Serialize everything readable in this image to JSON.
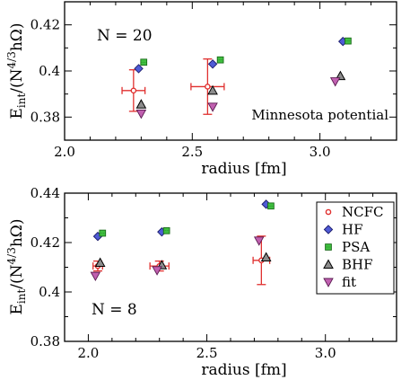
{
  "chart_data": [
    {
      "type": "scatter",
      "panel_label": "N = 20",
      "annotation": "Minnesota potential",
      "xlabel": "radius [fm]",
      "ylabel_main": "E",
      "ylabel_sub": "int",
      "ylabel_mid": "/(N",
      "ylabel_sup": "4/3",
      "ylabel_tail": "hΩ)",
      "xlim": [
        2.0,
        3.3
      ],
      "ylim": [
        0.37,
        0.43
      ],
      "xticks": [
        2.0,
        2.5,
        3.0
      ],
      "xtick_labels": [
        "2.0",
        "2.5",
        "3.0"
      ],
      "yticks": [
        0.38,
        0.4,
        0.42
      ],
      "ytick_labels": [
        "0.38",
        "0.4",
        "0.42"
      ],
      "series": [
        {
          "name": "NCFC",
          "marker": "circle",
          "color": "#e0302f",
          "points": [
            {
              "x": 2.27,
              "y": 0.3915,
              "yerr": 0.009,
              "xerr": 0.045
            },
            {
              "x": 2.56,
              "y": 0.3932,
              "yerr": 0.012,
              "xerr": 0.065
            }
          ]
        },
        {
          "name": "HF",
          "marker": "diamond",
          "color": "#4f5bd5",
          "points": [
            {
              "x": 2.29,
              "y": 0.401
            },
            {
              "x": 2.58,
              "y": 0.403
            },
            {
              "x": 3.09,
              "y": 0.4128
            }
          ]
        },
        {
          "name": "PSA",
          "marker": "square",
          "color": "#3fbf3f",
          "points": [
            {
              "x": 2.31,
              "y": 0.4038
            },
            {
              "x": 2.61,
              "y": 0.4048
            },
            {
              "x": 3.11,
              "y": 0.413
            }
          ]
        },
        {
          "name": "BHF",
          "marker": "triangle-up",
          "color": "#555555",
          "points": [
            {
              "x": 2.3,
              "y": 0.3855
            },
            {
              "x": 2.58,
              "y": 0.3915
            },
            {
              "x": 3.08,
              "y": 0.3978
            }
          ]
        },
        {
          "name": "fit",
          "marker": "triangle-down",
          "color": "#c060b0",
          "points": [
            {
              "x": 2.3,
              "y": 0.3815
            },
            {
              "x": 2.58,
              "y": 0.3845
            },
            {
              "x": 3.06,
              "y": 0.3955
            }
          ]
        }
      ],
      "legend": "none"
    },
    {
      "type": "scatter",
      "panel_label": "N = 8",
      "xlabel": "radius [fm]",
      "ylabel_main": "E",
      "ylabel_sub": "int",
      "ylabel_mid": "/(N",
      "ylabel_sup": "4/3",
      "ylabel_tail": "hΩ)",
      "xlim": [
        1.9,
        3.3
      ],
      "ylim": [
        0.38,
        0.44
      ],
      "xticks": [
        2.0,
        2.5,
        3.0
      ],
      "xtick_labels": [
        "2.0",
        "2.5",
        "3.0"
      ],
      "yticks": [
        0.38,
        0.4,
        0.42,
        0.44
      ],
      "ytick_labels": [
        "0.38",
        "0.4",
        "0.42",
        "0.44"
      ],
      "legend_position": "top-right",
      "legend_entries": [
        "NCFC",
        "HF",
        "PSA",
        "BHF",
        "fit"
      ],
      "series": [
        {
          "name": "NCFC",
          "marker": "circle",
          "color": "#e0302f",
          "points": [
            {
              "x": 2.04,
              "y": 0.4105,
              "yerr": 0.002,
              "xerr": 0.02
            },
            {
              "x": 2.3,
              "y": 0.4105,
              "yerr": 0.002,
              "xerr": 0.04
            },
            {
              "x": 2.73,
              "y": 0.4128,
              "yerr": 0.0098,
              "xerr": 0.035
            }
          ]
        },
        {
          "name": "HF",
          "marker": "diamond",
          "color": "#4f5bd5",
          "points": [
            {
              "x": 2.04,
              "y": 0.4225
            },
            {
              "x": 2.31,
              "y": 0.4243
            },
            {
              "x": 2.75,
              "y": 0.4355
            }
          ]
        },
        {
          "name": "PSA",
          "marker": "square",
          "color": "#3fbf3f",
          "points": [
            {
              "x": 2.06,
              "y": 0.4238
            },
            {
              "x": 2.33,
              "y": 0.4248
            },
            {
              "x": 2.77,
              "y": 0.4348
            }
          ]
        },
        {
          "name": "BHF",
          "marker": "triangle-up",
          "color": "#555555",
          "points": [
            {
              "x": 2.05,
              "y": 0.4118
            },
            {
              "x": 2.31,
              "y": 0.4108
            },
            {
              "x": 2.75,
              "y": 0.414
            }
          ]
        },
        {
          "name": "fit",
          "marker": "triangle-down",
          "color": "#c060b0",
          "points": [
            {
              "x": 2.03,
              "y": 0.4065
            },
            {
              "x": 2.29,
              "y": 0.4088
            },
            {
              "x": 2.72,
              "y": 0.4208
            }
          ]
        }
      ]
    }
  ]
}
